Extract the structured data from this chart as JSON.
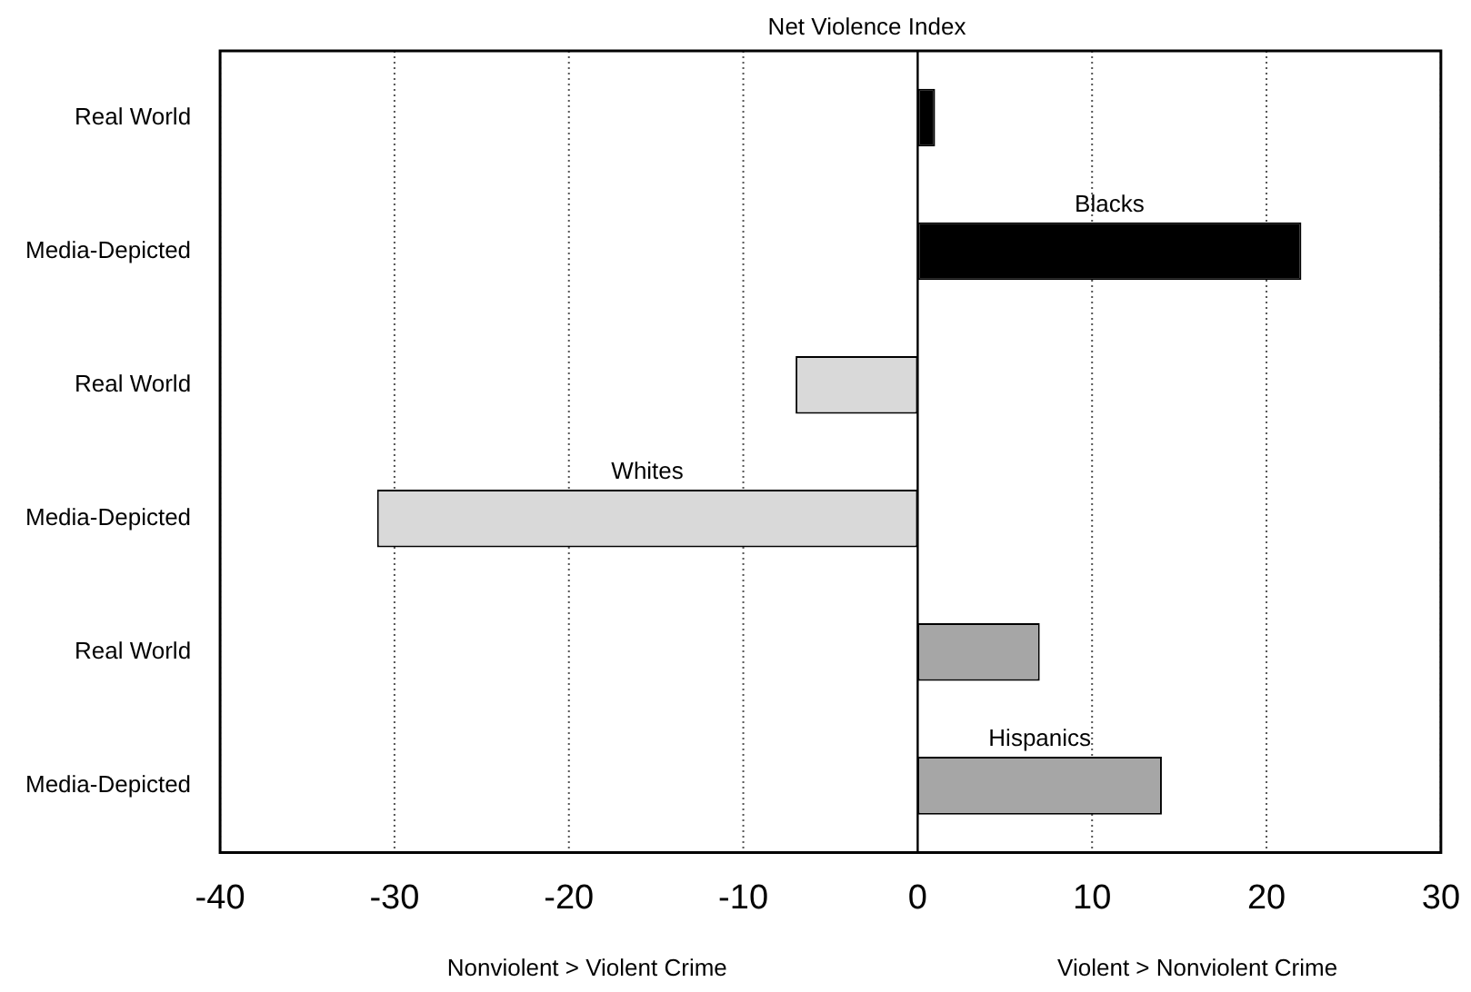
{
  "chart_data": {
    "type": "bar",
    "orientation": "horizontal",
    "stacked": true,
    "title": "Net Violence Index",
    "categories": [
      "Real World",
      "Media-Depicted",
      "Real World",
      "Media-Depicted",
      "Real World",
      "Media-Depicted"
    ],
    "series": [
      {
        "name": "Blacks",
        "color": "#000000",
        "values": [
          1,
          22,
          null,
          null,
          null,
          null
        ]
      },
      {
        "name": "Whites",
        "color": "#d9d9d9",
        "values": [
          null,
          null,
          -7,
          -31,
          null,
          null
        ]
      },
      {
        "name": "Hispanics",
        "color": "#a6a6a6",
        "values": [
          null,
          null,
          null,
          null,
          7,
          14
        ]
      }
    ],
    "xlim": [
      -40,
      30
    ],
    "xticks": [
      -40,
      -30,
      -20,
      -10,
      0,
      10,
      20,
      30
    ],
    "grid": "x",
    "legend": false,
    "annotations": [
      "Nonviolent > Violent Crime",
      "Violent > Nonviolent Crime"
    ]
  }
}
